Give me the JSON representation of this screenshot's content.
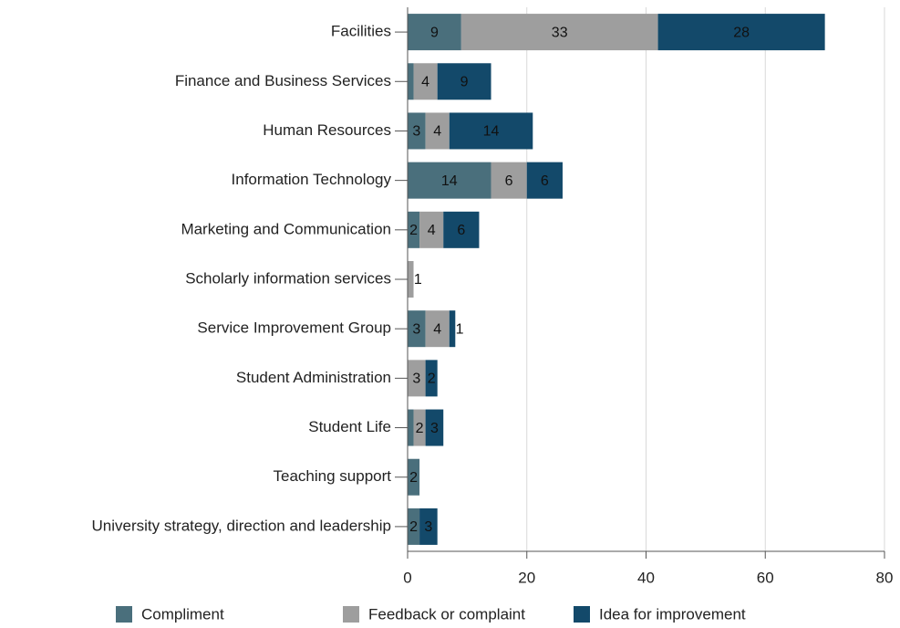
{
  "chart_data": {
    "type": "stacked_barh",
    "categories": [
      "Facilities",
      "Finance and Business Services",
      "Human Resources",
      "Information Technology",
      "Marketing and Communication",
      "Scholarly information services",
      "Service Improvement Group",
      "Student Administration",
      "Student Life",
      "Teaching support",
      "University strategy, direction and leadership"
    ],
    "series": [
      {
        "name": "Compliment",
        "color": "#4a6f7c",
        "values": [
          9,
          1,
          3,
          14,
          2,
          null,
          3,
          null,
          1,
          2,
          2
        ]
      },
      {
        "name": "Feedback or complaint",
        "color": "#9e9e9e",
        "values": [
          33,
          4,
          4,
          6,
          4,
          1,
          4,
          3,
          2,
          null,
          null
        ]
      },
      {
        "name": "Idea for improvement",
        "color": "#13496a",
        "values": [
          28,
          9,
          14,
          6,
          6,
          null,
          1,
          2,
          3,
          null,
          3
        ]
      }
    ],
    "xlim": [
      0,
      80
    ],
    "xticks": [
      0,
      20,
      40,
      60,
      80
    ],
    "grid": true,
    "legend": "bottom"
  }
}
